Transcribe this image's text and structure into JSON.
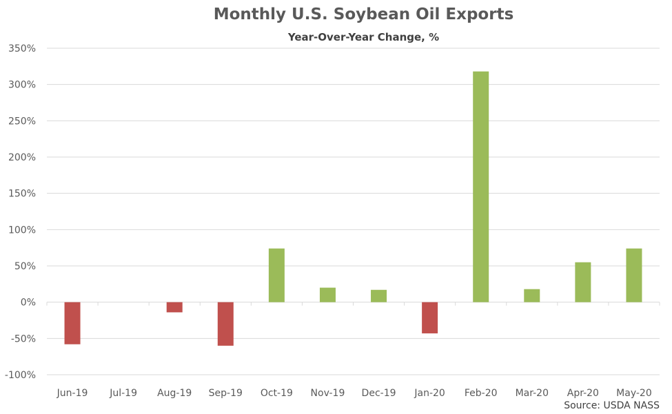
{
  "chart_data": {
    "type": "bar",
    "title": "Monthly U.S. Soybean Oil Exports",
    "subtitle": "Year-Over-Year Change, %",
    "source": "Source: USDA NASS",
    "categories": [
      "Jun-19",
      "Jul-19",
      "Aug-19",
      "Sep-19",
      "Oct-19",
      "Nov-19",
      "Dec-19",
      "Jan-20",
      "Feb-20",
      "Mar-20",
      "Apr-20",
      "May-20"
    ],
    "values": [
      -58,
      0,
      -14,
      -60,
      74,
      20,
      17,
      -43,
      318,
      18,
      55,
      74
    ],
    "ylim": [
      -100,
      350
    ],
    "yticks": [
      -100,
      -50,
      0,
      50,
      100,
      150,
      200,
      250,
      300,
      350
    ],
    "ytick_labels": [
      "-100%",
      "-50%",
      "0%",
      "50%",
      "100%",
      "150%",
      "200%",
      "250%",
      "300%",
      "350%"
    ],
    "grid": true,
    "colors": {
      "positive": "#9bbb59",
      "negative": "#c0504d",
      "grid": "#d9d9d9",
      "axis_text": "#595959"
    }
  }
}
